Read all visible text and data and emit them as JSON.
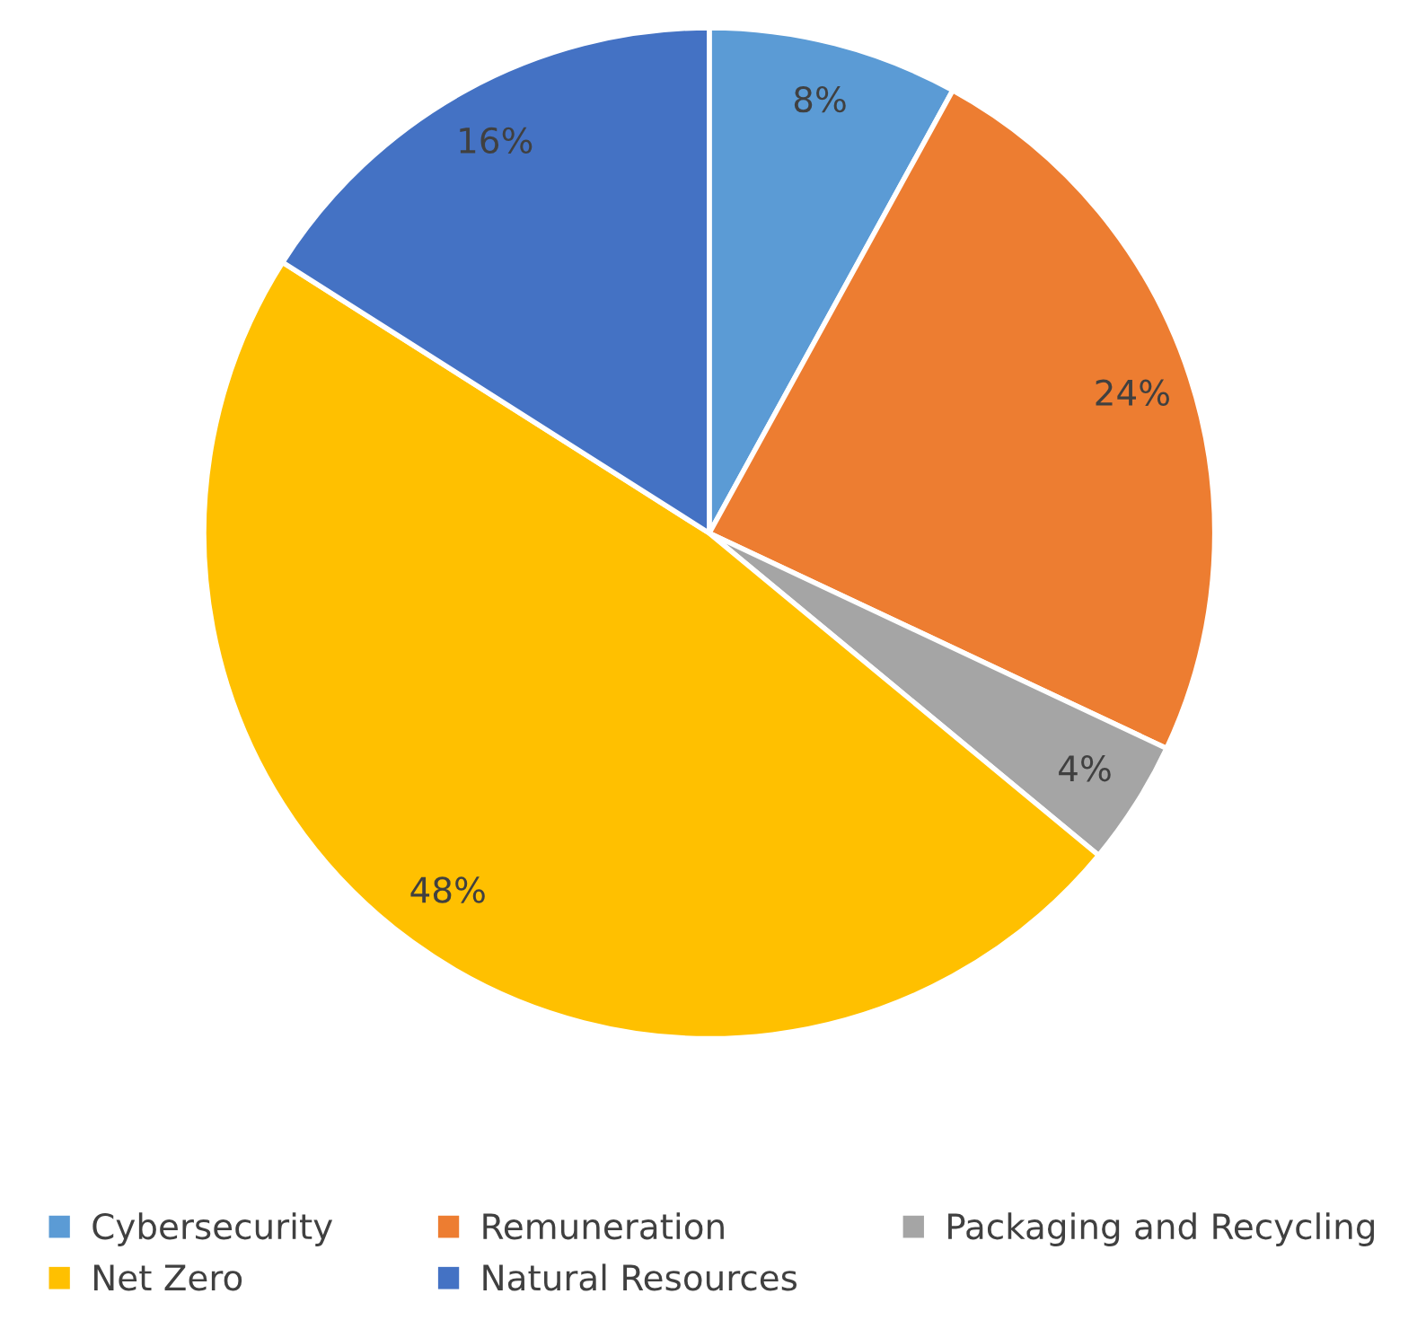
{
  "chart_data": {
    "type": "pie",
    "categories": [
      "Cybersecurity",
      "Remuneration",
      "Packaging and Recycling",
      "Net Zero",
      "Natural Resources"
    ],
    "values": [
      8,
      24,
      4,
      48,
      16
    ],
    "colors": [
      "#5b9bd5",
      "#ed7d31",
      "#a5a5a5",
      "#ffc000",
      "#4472c4"
    ],
    "value_labels": [
      "8%",
      "24%",
      "4%",
      "48%",
      "16%"
    ],
    "legend": "bottom"
  }
}
